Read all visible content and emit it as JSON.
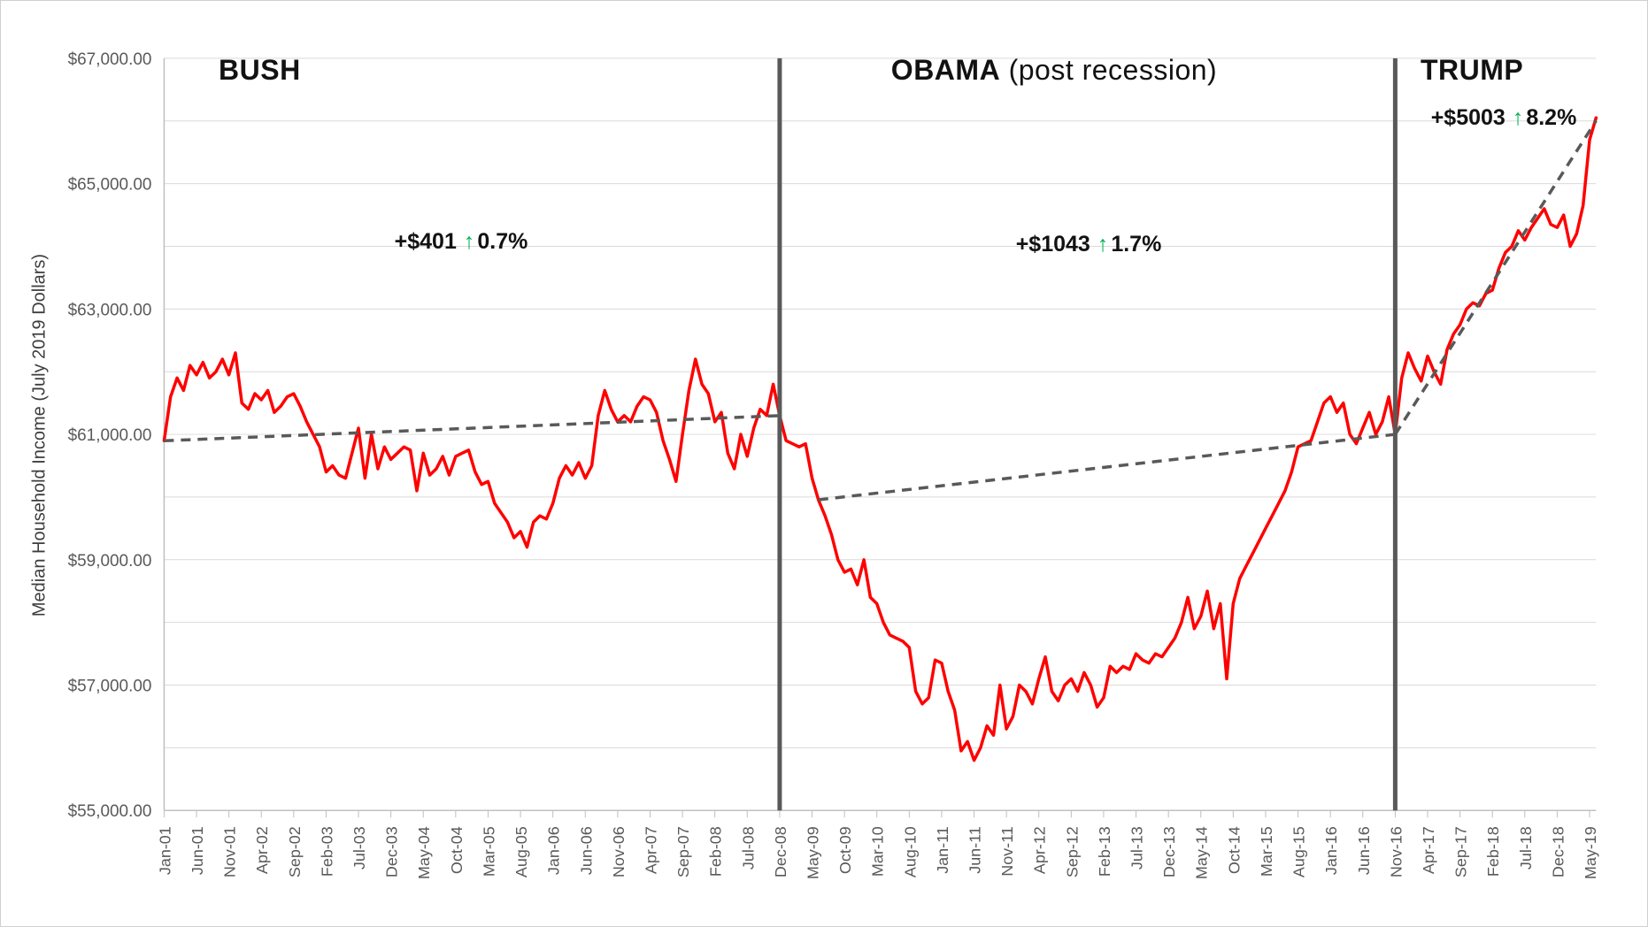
{
  "figure": {
    "eras": {
      "bush": {
        "title": "BUSH",
        "annotation": {
          "amount": "+$401",
          "arrow": "↑",
          "percent": "0.7%"
        }
      },
      "obama": {
        "title_bold": "OBAMA",
        "title_normal": " (post recession)",
        "annotation": {
          "amount": "+$1043",
          "arrow": "↑",
          "percent": "1.7%"
        }
      },
      "trump": {
        "title": "TRUMP",
        "annotation": {
          "amount": "+$5003",
          "arrow": "↑",
          "percent": "8.2%"
        }
      }
    },
    "colors": {
      "series_red": "#ff0000",
      "trend_gray": "#595959",
      "divider_gray": "#595959",
      "grid_gray": "#dadada",
      "axis_text_gray": "#595959",
      "arrow_green": "#00b050"
    }
  },
  "chart_data": {
    "type": "line",
    "title": "",
    "xlabel": "",
    "ylabel": "Median Household Income (July 2019 Dollars)",
    "ylim": [
      55000,
      67000
    ],
    "grid_step": 1000,
    "grid": true,
    "legend": false,
    "frequency": "monthly",
    "x_start": "Jan-2001",
    "x_end": "Jun-2019",
    "x_tick_every": 5,
    "x_tick_labels": [
      "Jan-01",
      "Jun-01",
      "Nov-01",
      "Apr-02",
      "Sep-02",
      "Feb-03",
      "Jul-03",
      "Dec-03",
      "May-04",
      "Oct-04",
      "Mar-05",
      "Aug-05",
      "Jan-06",
      "Jun-06",
      "Nov-06",
      "Apr-07",
      "Sep-07",
      "Feb-08",
      "Jul-08",
      "Dec-08",
      "May-09",
      "Oct-09",
      "Mar-10",
      "Aug-10",
      "Jan-11",
      "Jun-11",
      "Nov-11",
      "Apr-12",
      "Sep-12",
      "Feb-13",
      "Jul-13",
      "Dec-13",
      "May-14",
      "Oct-14",
      "Mar-15",
      "Aug-15",
      "Jan-16",
      "Jun-16",
      "Nov-16",
      "Apr-17",
      "Sep-17",
      "Feb-18",
      "Jul-18",
      "Dec-18",
      "May-19"
    ],
    "y_ticks": [
      {
        "value": 67000,
        "label": "$67,000.00"
      },
      {
        "value": 65000,
        "label": "$65,000.00"
      },
      {
        "value": 63000,
        "label": "$63,000.00"
      },
      {
        "value": 61000,
        "label": "$61,000.00"
      },
      {
        "value": 59000,
        "label": "$59,000.00"
      },
      {
        "value": 57000,
        "label": "$57,000.00"
      },
      {
        "value": 55000,
        "label": "$55,000.00"
      }
    ],
    "dividers_at_index": [
      95,
      190
    ],
    "trend_lines": [
      {
        "era": "BUSH",
        "from_index": 0,
        "from_value": 60898,
        "to_index": 95,
        "to_value": 61299,
        "change": "+$401",
        "percent": "0.7%"
      },
      {
        "era": "OBAMA (post recession)",
        "from_index": 101,
        "from_value": 59957,
        "to_index": 190,
        "to_value": 61000,
        "change": "+$1043",
        "percent": "1.7%"
      },
      {
        "era": "TRUMP",
        "from_index": 190,
        "from_value": 61000,
        "to_index": 221,
        "to_value": 66003,
        "change": "+$5003",
        "percent": "8.2%"
      }
    ],
    "series": [
      {
        "name": "Median Household Income (July 2019 Dollars)",
        "color": "#ff0000",
        "values": [
          60900,
          61600,
          61900,
          61700,
          62100,
          61950,
          62150,
          61900,
          62000,
          62200,
          61950,
          62300,
          61500,
          61400,
          61650,
          61550,
          61700,
          61350,
          61450,
          61600,
          61650,
          61450,
          61200,
          61000,
          60800,
          60400,
          60500,
          60350,
          60300,
          60700,
          61100,
          60300,
          61000,
          60450,
          60800,
          60600,
          60700,
          60800,
          60750,
          60100,
          60700,
          60350,
          60450,
          60650,
          60350,
          60650,
          60700,
          60750,
          60400,
          60200,
          60250,
          59900,
          59750,
          59600,
          59350,
          59450,
          59200,
          59600,
          59700,
          59650,
          59900,
          60300,
          60500,
          60350,
          60550,
          60300,
          60500,
          61300,
          61700,
          61400,
          61200,
          61300,
          61200,
          61450,
          61600,
          61550,
          61350,
          60900,
          60600,
          60250,
          61000,
          61700,
          62200,
          61800,
          61650,
          61200,
          61350,
          60700,
          60450,
          61000,
          60650,
          61100,
          61400,
          61300,
          61800,
          61300,
          60900,
          60850,
          60800,
          60850,
          60300,
          59950,
          59700,
          59400,
          59000,
          58800,
          58850,
          58600,
          59000,
          58400,
          58300,
          58000,
          57800,
          57750,
          57700,
          57600,
          56900,
          56700,
          56800,
          57400,
          57350,
          56900,
          56600,
          55950,
          56100,
          55800,
          56000,
          56350,
          56200,
          57000,
          56300,
          56500,
          57000,
          56900,
          56700,
          57100,
          57450,
          56900,
          56750,
          57000,
          57100,
          56900,
          57200,
          57000,
          56650,
          56800,
          57300,
          57200,
          57300,
          57250,
          57500,
          57400,
          57350,
          57500,
          57450,
          57600,
          57750,
          58000,
          58400,
          57900,
          58100,
          58500,
          57900,
          58300,
          57100,
          58300,
          58700,
          58900,
          59100,
          59300,
          59500,
          59700,
          59900,
          60100,
          60400,
          60800,
          60850,
          60900,
          61200,
          61500,
          61600,
          61350,
          61500,
          61000,
          60850,
          61100,
          61350,
          61000,
          61200,
          61600,
          61000,
          61900,
          62300,
          62050,
          61850,
          62250,
          62000,
          61800,
          62350,
          62600,
          62750,
          63000,
          63100,
          63050,
          63250,
          63300,
          63650,
          63900,
          64000,
          64250,
          64100,
          64300,
          64450,
          64600,
          64350,
          64300,
          64500,
          64000,
          64200,
          64650,
          65700,
          66050
        ]
      }
    ]
  }
}
